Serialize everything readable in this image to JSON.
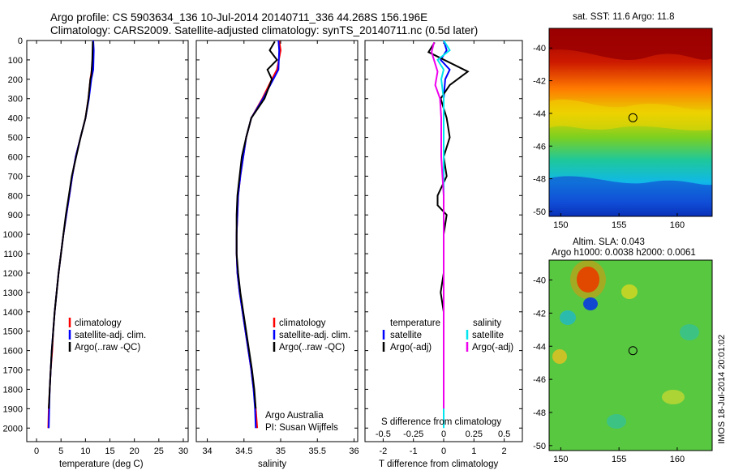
{
  "titles": {
    "line1": "Argo profile: CS 5903634_136 10-Jul-2014 20140711_336 44.268S 156.196E",
    "line2": "Climatology: CARS2009. Satellite-adjusted climatology: synTS_20140711.nc (0.5d later)"
  },
  "depth_ticks": [
    "0",
    "100",
    "200",
    "300",
    "400",
    "500",
    "600",
    "700",
    "800",
    "900",
    "1000",
    "1100",
    "1200",
    "1300",
    "1400",
    "1500",
    "1600",
    "1700",
    "1800",
    "1900",
    "2000"
  ],
  "colors": {
    "climatology": "#ff0000",
    "satellite": "#0000ff",
    "argo": "#000000",
    "sat_salinity": "#00e5ee",
    "argo_salinity": "#ee00ee"
  },
  "chart_data": [
    {
      "type": "line",
      "xlabel": "temperature (deg C)",
      "x_ticks": [
        "0",
        "5",
        "10",
        "15",
        "20",
        "25",
        "30"
      ],
      "xlim": [
        -2,
        31
      ],
      "ylim": [
        2070,
        0
      ],
      "legend": [
        "climatology",
        "satellite-adj. clim.",
        "Argo(..raw -QC)"
      ],
      "series": [
        {
          "name": "climatology",
          "x": [
            11.6,
            11.6,
            11.3,
            11.0,
            10.6,
            10.0,
            9.0,
            8.0,
            7.3,
            6.7,
            6.1,
            5.5,
            5.0,
            4.5,
            4.1,
            3.7,
            3.4,
            3.2,
            2.9,
            2.7,
            2.5,
            2.4
          ],
          "y": [
            0,
            50,
            150,
            200,
            300,
            400,
            500,
            600,
            700,
            800,
            900,
            1000,
            1100,
            1200,
            1300,
            1400,
            1500,
            1600,
            1700,
            1800,
            1900,
            2000
          ]
        },
        {
          "name": "satellite-adj. clim.",
          "x": [
            11.6,
            11.7,
            11.6,
            11.2,
            10.7,
            10.0,
            9.0,
            8.0,
            7.3,
            6.7,
            6.1,
            5.5,
            5.0,
            4.5,
            4.1,
            3.7,
            3.4,
            3.1,
            2.9,
            2.7,
            2.6,
            2.5
          ],
          "y": [
            0,
            50,
            150,
            200,
            300,
            400,
            500,
            600,
            700,
            800,
            900,
            1000,
            1100,
            1200,
            1300,
            1400,
            1500,
            1600,
            1700,
            1800,
            1900,
            2000
          ]
        },
        {
          "name": "Argo(..raw -QC)",
          "x": [
            11.5,
            11.4,
            11.2,
            11.0,
            10.6,
            10.0,
            9.0,
            8.1,
            7.2,
            6.6,
            6.0,
            5.5,
            5.0,
            4.5,
            4.1,
            3.7,
            3.4,
            3.1,
            2.9,
            2.7,
            2.5
          ],
          "y": [
            5,
            100,
            180,
            200,
            300,
            400,
            500,
            600,
            700,
            800,
            900,
            1000,
            1100,
            1200,
            1300,
            1400,
            1500,
            1600,
            1700,
            1800,
            1900
          ]
        }
      ]
    },
    {
      "type": "line",
      "xlabel": "salinity",
      "x_ticks": [
        "34",
        "34.5",
        "35",
        "35.5",
        "36"
      ],
      "xlim": [
        33.85,
        36.05
      ],
      "ylim": [
        2070,
        0
      ],
      "legend": [
        "climatology",
        "satellite-adj. clim.",
        "Argo(..raw -QC)"
      ],
      "annotation": [
        "Argo Australia",
        "PI: Susan Wijffels"
      ],
      "series": [
        {
          "name": "climatology",
          "x": [
            34.98,
            35.0,
            34.95,
            34.88,
            34.75,
            34.6,
            34.53,
            34.49,
            34.45,
            34.42,
            34.41,
            34.4,
            34.4,
            34.41,
            34.44,
            34.48,
            34.52,
            34.56,
            34.6,
            34.63,
            34.66,
            34.68
          ],
          "y": [
            0,
            50,
            150,
            200,
            300,
            400,
            500,
            600,
            700,
            800,
            900,
            1000,
            1100,
            1200,
            1300,
            1400,
            1500,
            1600,
            1700,
            1800,
            1900,
            2000
          ]
        },
        {
          "name": "satellite-adj. clim.",
          "x": [
            34.97,
            34.98,
            34.97,
            34.9,
            34.76,
            34.6,
            34.53,
            34.49,
            34.45,
            34.42,
            34.41,
            34.4,
            34.4,
            34.41,
            34.44,
            34.48,
            34.52,
            34.56,
            34.6,
            34.63,
            34.65,
            34.66
          ],
          "y": [
            0,
            50,
            150,
            200,
            300,
            400,
            500,
            600,
            700,
            800,
            900,
            1000,
            1100,
            1200,
            1300,
            1400,
            1500,
            1600,
            1700,
            1800,
            1900,
            2000
          ]
        },
        {
          "name": "Argo(..raw -QC)",
          "x": [
            34.92,
            34.85,
            34.95,
            34.82,
            34.88,
            34.78,
            34.6,
            34.53,
            34.47,
            34.44,
            34.41,
            34.4,
            34.4,
            34.4,
            34.42,
            34.45,
            34.49,
            34.53,
            34.57,
            34.61,
            34.64,
            34.66
          ],
          "y": [
            5,
            50,
            100,
            150,
            200,
            300,
            400,
            500,
            600,
            700,
            800,
            900,
            1000,
            1100,
            1200,
            1300,
            1400,
            1500,
            1600,
            1700,
            1800,
            1900
          ]
        }
      ]
    },
    {
      "type": "line",
      "xlabel": "T difference from climatology",
      "xlabel2": "S difference from climatology",
      "x_ticks": [
        "-2",
        "-1",
        "0",
        "1",
        "2"
      ],
      "s_ticks": [
        "-0.5",
        "-0.25",
        "0",
        "0.25",
        "0.5"
      ],
      "xlim": [
        -2.6,
        2.6
      ],
      "ylim": [
        2070,
        0
      ],
      "legend_t": [
        "temperature",
        "satellite",
        "Argo(-adj)"
      ],
      "legend_s": [
        "salinity",
        "satellite",
        "Argo(-adj)"
      ],
      "series": [
        {
          "name": "satellite",
          "x": [
            0,
            0.1,
            -0.1,
            0.2,
            0.05,
            0,
            0,
            0,
            0,
            0,
            0,
            0,
            0,
            0,
            0,
            0,
            0,
            0,
            0,
            0,
            0
          ],
          "y": [
            0,
            50,
            100,
            150,
            200,
            300,
            400,
            500,
            600,
            700,
            800,
            900,
            1000,
            1100,
            1200,
            1300,
            1400,
            1500,
            1600,
            1700,
            1800
          ]
        },
        {
          "name": "Argo(-adj)",
          "x": [
            -0.3,
            -0.5,
            0.8,
            0.2,
            -0.1,
            0.1,
            0.2,
            0.0,
            0.1,
            -0.2,
            -0.2,
            0.1,
            0.0,
            0.0,
            0.0,
            -0.1,
            0.0,
            0.0,
            0.0,
            0.0,
            0.0
          ],
          "y": [
            10,
            60,
            160,
            230,
            300,
            400,
            500,
            600,
            700,
            800,
            850,
            900,
            1000,
            1100,
            1200,
            1300,
            1400,
            1500,
            1600,
            1700,
            1900
          ]
        },
        {
          "name": "satellite",
          "x": [
            0,
            0.05,
            -0.05,
            0.0,
            -0.02,
            0,
            0,
            0,
            0,
            0,
            0,
            0,
            0,
            0,
            0,
            0,
            0,
            0,
            0,
            0,
            0
          ],
          "y": [
            0,
            50,
            100,
            150,
            200,
            300,
            400,
            500,
            600,
            700,
            800,
            900,
            1000,
            1100,
            1200,
            1300,
            1400,
            1500,
            1600,
            1700,
            2000
          ]
        },
        {
          "name": "Argo(-adj)",
          "x": [
            -0.08,
            -0.1,
            -0.05,
            -0.07,
            -0.03,
            -0.02,
            -0.02,
            -0.02,
            -0.01,
            0,
            0,
            0,
            0,
            0,
            0,
            0,
            0,
            0,
            0,
            0,
            0
          ],
          "y": [
            10,
            60,
            160,
            230,
            300,
            400,
            500,
            600,
            700,
            800,
            900,
            1000,
            1100,
            1200,
            1300,
            1400,
            1500,
            1600,
            1700,
            1800,
            1900
          ]
        }
      ]
    },
    {
      "type": "heatmap",
      "title": "sat. SST: 11.6 Argo: 11.8",
      "x_ticks": [
        "150",
        "155",
        "160"
      ],
      "y_ticks": [
        "-40",
        "-42",
        "-44",
        "-46",
        "-48",
        "-50"
      ],
      "xlim": [
        149,
        163
      ],
      "ylim": [
        -50.3,
        -38.8
      ],
      "marker": {
        "lon": 156.196,
        "lat": -44.268
      }
    },
    {
      "type": "heatmap",
      "title": "Altim. SLA: 0.043",
      "subtitle": "Argo h1000: 0.0038 h2000: 0.0061",
      "x_ticks": [
        "150",
        "155",
        "160"
      ],
      "y_ticks": [
        "-40",
        "-42",
        "-44",
        "-46",
        "-48",
        "-50"
      ],
      "xlim": [
        149,
        163
      ],
      "ylim": [
        -50.3,
        -38.8
      ],
      "marker": {
        "lon": 156.196,
        "lat": -44.268
      },
      "side_label": "IMOS 18-Jul-2014 20:01:02"
    }
  ]
}
